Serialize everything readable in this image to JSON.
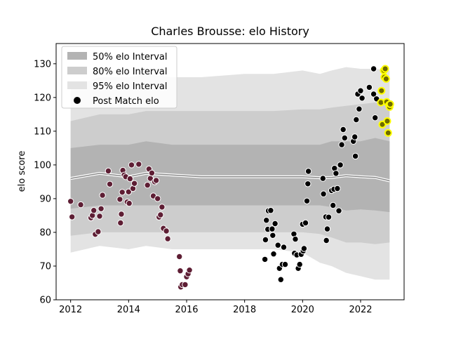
{
  "chart_data": {
    "type": "scatter",
    "title": "Charles Brousse: elo History",
    "xlabel": "",
    "ylabel": "elo score",
    "xlim": [
      2011.5,
      2023.5
    ],
    "ylim": [
      60,
      136
    ],
    "xticks": [
      2012,
      2014,
      2016,
      2018,
      2020,
      2022
    ],
    "xtick_labels": [
      "2012",
      "2014",
      "2016",
      "2018",
      "2020",
      "2022"
    ],
    "yticks": [
      60,
      70,
      80,
      90,
      100,
      110,
      120,
      130
    ],
    "ytick_labels": [
      "60",
      "70",
      "80",
      "90",
      "100",
      "110",
      "120",
      "130"
    ],
    "legend_position": "top-left",
    "legend": [
      "50% elo Interval",
      "80% elo Interval",
      "95% elo Interval",
      "Post Match elo"
    ],
    "colors": {
      "band95": "#e3e3e3",
      "band80": "#cdcdcd",
      "band50": "#b3b3b3",
      "median_line": "#8a8a8a",
      "median_halo": "#ffffff",
      "early_points": "#5e1e34",
      "mid_points": "#000000",
      "recent_points": "#6e6a00",
      "recent_edge": "#ffff00"
    },
    "intervals": {
      "x": [
        2012.0,
        2013.0,
        2014.0,
        2014.6,
        2015.5,
        2016.5,
        2018.0,
        2019.0,
        2020.0,
        2020.6,
        2021.0,
        2021.5,
        2022.0,
        2022.5,
        2023.0
      ],
      "median": [
        96,
        97.5,
        96.5,
        97.5,
        97,
        96.5,
        96.5,
        96.5,
        96.5,
        96.2,
        96.3,
        96.8,
        96.5,
        96.3,
        95.3
      ],
      "p50_low": [
        87,
        88,
        88,
        88,
        88,
        88,
        88,
        88,
        88,
        88,
        87.5,
        86.5,
        86.8,
        86.5,
        86
      ],
      "p50_high": [
        105,
        106,
        106,
        107,
        106,
        106,
        106,
        106,
        106,
        106,
        107,
        107,
        107,
        108,
        107
      ],
      "p80_low": [
        79,
        80,
        80,
        80,
        80,
        80,
        80,
        80,
        80,
        79.5,
        78.5,
        77,
        77,
        76.5,
        77
      ],
      "p80_high": [
        113,
        115,
        115,
        116,
        116,
        116,
        116,
        116,
        116.5,
        116.5,
        117,
        117.5,
        118,
        118.5,
        118
      ],
      "p95_low": [
        74,
        76,
        75,
        76,
        75,
        75,
        75,
        75,
        74,
        71,
        70,
        68,
        67,
        66,
        66
      ],
      "p95_high": [
        123,
        126,
        126,
        127,
        126,
        126,
        127,
        127,
        128,
        127,
        128,
        129,
        128.5,
        128.5,
        128
      ]
    },
    "series": [
      {
        "group": "early",
        "points": [
          [
            2012.0,
            89.2
          ],
          [
            2012.05,
            84.6
          ],
          [
            2012.35,
            88.2
          ],
          [
            2012.7,
            84.3
          ],
          [
            2012.75,
            85.0
          ],
          [
            2012.8,
            86.5
          ],
          [
            2012.85,
            79.4
          ],
          [
            2012.95,
            80.2
          ],
          [
            2013.0,
            84.8
          ],
          [
            2013.05,
            87.0
          ],
          [
            2013.1,
            91.0
          ],
          [
            2013.3,
            98.2
          ],
          [
            2013.35,
            94.3
          ],
          [
            2013.7,
            89.8
          ],
          [
            2013.72,
            82.8
          ],
          [
            2013.75,
            85.4
          ],
          [
            2013.78,
            91.9
          ],
          [
            2013.8,
            98.4
          ],
          [
            2013.85,
            97.0
          ],
          [
            2013.9,
            96.5
          ],
          [
            2013.95,
            89.0
          ],
          [
            2014.0,
            92.0
          ],
          [
            2014.02,
            88.6
          ],
          [
            2014.05,
            95.9
          ],
          [
            2014.1,
            100.0
          ],
          [
            2014.15,
            93.0
          ],
          [
            2014.2,
            94.5
          ],
          [
            2014.35,
            100.2
          ],
          [
            2014.65,
            94.0
          ],
          [
            2014.7,
            98.8
          ],
          [
            2014.75,
            96.0
          ],
          [
            2014.8,
            97.6
          ],
          [
            2014.85,
            90.8
          ],
          [
            2014.9,
            95.0
          ],
          [
            2014.95,
            95.4
          ],
          [
            2015.0,
            90.0
          ],
          [
            2015.05,
            84.5
          ],
          [
            2015.1,
            85.2
          ],
          [
            2015.15,
            87.5
          ],
          [
            2015.2,
            81.2
          ],
          [
            2015.3,
            80.4
          ],
          [
            2015.35,
            78.1
          ],
          [
            2015.75,
            72.8
          ],
          [
            2015.78,
            68.6
          ],
          [
            2015.8,
            63.8
          ],
          [
            2015.85,
            64.5
          ],
          [
            2015.95,
            64.5
          ],
          [
            2016.0,
            66.8
          ],
          [
            2016.05,
            67.7
          ],
          [
            2016.1,
            68.8
          ]
        ]
      },
      {
        "group": "mid",
        "points": [
          [
            2018.7,
            72.0
          ],
          [
            2018.72,
            77.8
          ],
          [
            2018.75,
            83.6
          ],
          [
            2018.8,
            80.9
          ],
          [
            2018.82,
            86.4
          ],
          [
            2018.9,
            86.5
          ],
          [
            2018.95,
            81.0
          ],
          [
            2018.97,
            79.1
          ],
          [
            2019.0,
            73.6
          ],
          [
            2019.05,
            82.6
          ],
          [
            2019.15,
            76.2
          ],
          [
            2019.2,
            69.3
          ],
          [
            2019.25,
            66.0
          ],
          [
            2019.3,
            70.5
          ],
          [
            2019.35,
            75.6
          ],
          [
            2019.4,
            70.5
          ],
          [
            2019.7,
            79.5
          ],
          [
            2019.72,
            73.8
          ],
          [
            2019.75,
            78.0
          ],
          [
            2019.8,
            73.3
          ],
          [
            2019.85,
            69.3
          ],
          [
            2019.9,
            70.5
          ],
          [
            2019.95,
            73.5
          ],
          [
            2020.0,
            82.4
          ],
          [
            2020.02,
            74.5
          ],
          [
            2020.05,
            75.2
          ],
          [
            2020.1,
            82.8
          ],
          [
            2020.15,
            89.3
          ],
          [
            2020.18,
            94.4
          ],
          [
            2020.2,
            98.1
          ],
          [
            2020.7,
            96.0
          ],
          [
            2020.72,
            91.4
          ],
          [
            2020.8,
            84.6
          ],
          [
            2020.82,
            77.6
          ],
          [
            2020.85,
            81.0
          ],
          [
            2020.9,
            84.5
          ],
          [
            2021.0,
            92.4
          ],
          [
            2021.05,
            88.0
          ],
          [
            2021.08,
            92.8
          ],
          [
            2021.1,
            99.0
          ],
          [
            2021.15,
            97.5
          ],
          [
            2021.2,
            93.0
          ],
          [
            2021.25,
            86.4
          ],
          [
            2021.3,
            100.0
          ],
          [
            2021.35,
            106.0
          ],
          [
            2021.4,
            110.5
          ],
          [
            2021.45,
            108.0
          ],
          [
            2021.75,
            107.0
          ],
          [
            2021.8,
            108.3
          ],
          [
            2021.82,
            102.6
          ],
          [
            2021.85,
            113.4
          ],
          [
            2021.9,
            121.0
          ],
          [
            2021.95,
            116.6
          ],
          [
            2022.0,
            122.0
          ],
          [
            2022.05,
            119.8
          ],
          [
            2022.3,
            123.0
          ],
          [
            2022.45,
            121.0
          ],
          [
            2022.5,
            114.0
          ],
          [
            2022.55,
            119.6
          ],
          [
            2022.45,
            128.5
          ]
        ]
      },
      {
        "group": "recent",
        "points": [
          [
            2022.7,
            118.5
          ],
          [
            2022.72,
            122.0
          ],
          [
            2022.75,
            112.0
          ],
          [
            2022.8,
            128.0
          ],
          [
            2022.82,
            126.0
          ],
          [
            2022.85,
            128.5
          ],
          [
            2022.88,
            125.5
          ],
          [
            2022.9,
            118.7
          ],
          [
            2022.92,
            113.0
          ],
          [
            2022.95,
            109.5
          ],
          [
            2022.98,
            117.8
          ],
          [
            2023.0,
            117.2
          ],
          [
            2023.02,
            118.0
          ]
        ]
      }
    ]
  }
}
